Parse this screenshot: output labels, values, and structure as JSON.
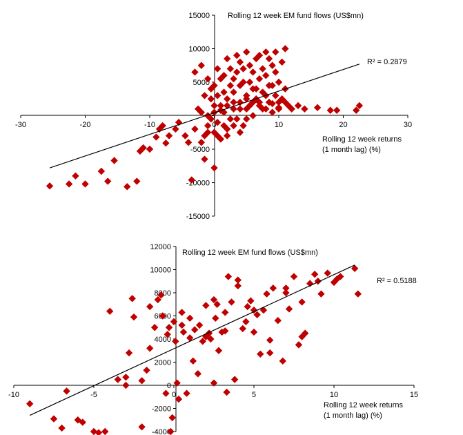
{
  "chart_data": [
    {
      "type": "scatter",
      "title": "Rolling 12 week EM fund flows (US$mn)",
      "xlabel": [
        "Rolling 12 week returns",
        "(1 month lag) (%)"
      ],
      "ylabel": "",
      "xlim": [
        -30,
        30
      ],
      "ylim": [
        -15000,
        15000
      ],
      "x_ticks": [
        -30,
        -20,
        -10,
        0,
        10,
        20,
        30
      ],
      "y_ticks": [
        15000,
        10000,
        5000,
        0,
        -5000,
        -10000,
        -15000
      ],
      "r_squared_label": "R² = 0.2879",
      "marker_color": "#c00000",
      "trendline": {
        "x": [
          -25.5,
          22.5
        ],
        "y": [
          -7800,
          7700
        ]
      },
      "series": [
        {
          "points": [
            [
              -25.5,
              -10500
            ],
            [
              -22.5,
              -10200
            ],
            [
              -21.5,
              -9000
            ],
            [
              -20,
              -10200
            ],
            [
              -17.5,
              -8300
            ],
            [
              -16.5,
              -9800
            ],
            [
              -15.5,
              -6700
            ],
            [
              -13.5,
              -10600
            ],
            [
              -12,
              -9800
            ],
            [
              -11.5,
              -5300
            ],
            [
              -11,
              -4800
            ],
            [
              -10,
              -5000
            ],
            [
              -9,
              -3200
            ],
            [
              -8.5,
              -2000
            ],
            [
              -8,
              -1500
            ],
            [
              -7.5,
              -4100
            ],
            [
              -7,
              -3000
            ],
            [
              -6,
              -2000
            ],
            [
              -5.5,
              -1000
            ],
            [
              -4.5,
              -3000
            ],
            [
              -4,
              -4000
            ],
            [
              -3.5,
              -9600
            ],
            [
              -3,
              -2000
            ],
            [
              -2.5,
              1000
            ],
            [
              -2,
              -4000
            ],
            [
              -1.5,
              -3000
            ],
            [
              -1,
              0
            ],
            [
              -1,
              -1500
            ],
            [
              -0.5,
              -500
            ],
            [
              0,
              500
            ],
            [
              0,
              -7800
            ],
            [
              0,
              -2500
            ],
            [
              -1.5,
              -6500
            ],
            [
              -3,
              6500
            ],
            [
              -2,
              7500
            ],
            [
              -1,
              5500
            ],
            [
              -0.5,
              4000
            ],
            [
              0.5,
              3000
            ],
            [
              0.5,
              -1000
            ],
            [
              1,
              1500
            ],
            [
              1,
              -3500
            ],
            [
              1.5,
              500
            ],
            [
              1.5,
              6000
            ],
            [
              2,
              2500
            ],
            [
              2,
              -2000
            ],
            [
              2.5,
              4500
            ],
            [
              2.5,
              7000
            ],
            [
              3,
              1000
            ],
            [
              3,
              3500
            ],
            [
              3.5,
              -500
            ],
            [
              3.5,
              6500
            ],
            [
              4,
              2000
            ],
            [
              4,
              8000
            ],
            [
              4.5,
              5000
            ],
            [
              4.5,
              -1500
            ],
            [
              5,
              3000
            ],
            [
              5,
              9500
            ],
            [
              5.5,
              1500
            ],
            [
              5.5,
              7500
            ],
            [
              6,
              4000
            ],
            [
              6,
              0
            ],
            [
              6.5,
              8500
            ],
            [
              6.5,
              2500
            ],
            [
              7,
              5500
            ],
            [
              7,
              9000
            ],
            [
              7.5,
              1000
            ],
            [
              7.5,
              3500
            ],
            [
              8,
              6000
            ],
            [
              8,
              9500
            ],
            [
              8.5,
              2000
            ],
            [
              8.5,
              4500
            ],
            [
              9,
              7500
            ],
            [
              9,
              500
            ],
            [
              9.5,
              3000
            ],
            [
              9.5,
              9500
            ],
            [
              10,
              5000
            ],
            [
              10,
              1000
            ],
            [
              10.5,
              8000
            ],
            [
              10.5,
              2500
            ],
            [
              11,
              10000
            ],
            [
              11,
              4000
            ],
            [
              11.5,
              1500
            ],
            [
              12,
              1000
            ],
            [
              13,
              1500
            ],
            [
              14,
              1000
            ],
            [
              16,
              1200
            ],
            [
              18,
              800
            ],
            [
              19,
              800
            ],
            [
              22,
              800
            ],
            [
              22.5,
              1500
            ],
            [
              -0.5,
              2500
            ],
            [
              0,
              4500
            ],
            [
              0.5,
              7000
            ],
            [
              1,
              5500
            ],
            [
              1.5,
              3500
            ],
            [
              2,
              8500
            ],
            [
              2.5,
              -500
            ],
            [
              3,
              5500
            ],
            [
              3.5,
              9000
            ],
            [
              4,
              4500
            ],
            [
              4.5,
              7000
            ],
            [
              5,
              1000
            ],
            [
              5.5,
              5000
            ],
            [
              6,
              6500
            ],
            [
              6.5,
              4000
            ],
            [
              7,
              2000
            ],
            [
              7.5,
              7000
            ],
            [
              8,
              3000
            ],
            [
              8.5,
              8500
            ],
            [
              9,
              4500
            ],
            [
              9.5,
              6500
            ],
            [
              10,
              2000
            ],
            [
              -2,
              500
            ],
            [
              -1.5,
              3000
            ],
            [
              0,
              1500
            ],
            [
              1,
              800
            ],
            [
              2,
              1500
            ],
            [
              3,
              2000
            ],
            [
              4,
              1000
            ],
            [
              5,
              2500
            ],
            [
              6,
              2000
            ],
            [
              7,
              1500
            ],
            [
              8,
              1000
            ],
            [
              9,
              1800
            ],
            [
              10,
              1200
            ],
            [
              11,
              2000
            ],
            [
              3,
              -1500
            ],
            [
              5,
              -500
            ],
            [
              2,
              -3000
            ],
            [
              1.5,
              -1500
            ],
            [
              0.5,
              -3000
            ],
            [
              -1,
              -2500
            ],
            [
              4,
              -2500
            ]
          ]
        }
      ]
    },
    {
      "type": "scatter",
      "title": "Rolling 12 week EM fund flows (US$mn)",
      "xlabel": [
        "Rolling 12 week returns",
        "(1 month lag) (%)"
      ],
      "ylabel": "",
      "xlim": [
        -10,
        15
      ],
      "ylim": [
        -4000,
        12000
      ],
      "x_ticks": [
        -10,
        -5,
        0,
        5,
        10,
        15
      ],
      "y_ticks": [
        12000,
        10000,
        8000,
        6000,
        4000,
        2000,
        0,
        -2000,
        -4000
      ],
      "r_squared_label": "R² = 0.5188",
      "marker_color": "#c00000",
      "trendline": {
        "x": [
          -9,
          11.3
        ],
        "y": [
          -2600,
          10400
        ]
      },
      "series": [
        {
          "points": [
            [
              -9,
              -1600
            ],
            [
              -7.5,
              -2900
            ],
            [
              -7,
              -3700
            ],
            [
              -6.7,
              -500
            ],
            [
              -6,
              -3000
            ],
            [
              -5.7,
              -3200
            ],
            [
              -5,
              -4000
            ],
            [
              -4.7,
              -4100
            ],
            [
              -4.3,
              -4000
            ],
            [
              -4,
              6400
            ],
            [
              -3.5,
              500
            ],
            [
              -3,
              700
            ],
            [
              -3,
              0
            ],
            [
              -2.8,
              2800
            ],
            [
              -2.6,
              7500
            ],
            [
              -2.5,
              5900
            ],
            [
              -2,
              -3600
            ],
            [
              -2,
              400
            ],
            [
              -1.7,
              1300
            ],
            [
              -1.5,
              3200
            ],
            [
              -1.5,
              6800
            ],
            [
              -1.2,
              5000
            ],
            [
              -1,
              7400
            ],
            [
              -0.8,
              7800
            ],
            [
              -0.7,
              6000
            ],
            [
              -0.5,
              -700
            ],
            [
              -0.3,
              5000
            ],
            [
              -0.2,
              -4000
            ],
            [
              -0.1,
              -2800
            ],
            [
              0,
              5500
            ],
            [
              0.1,
              3800
            ],
            [
              0.2,
              200
            ],
            [
              0.3,
              -1200
            ],
            [
              0.5,
              5200
            ],
            [
              0.6,
              4600
            ],
            [
              0.8,
              -700
            ],
            [
              1,
              4100
            ],
            [
              1.2,
              2100
            ],
            [
              1.3,
              4800
            ],
            [
              1.5,
              1000
            ],
            [
              1.6,
              5200
            ],
            [
              1.8,
              3800
            ],
            [
              2,
              6900
            ],
            [
              2.2,
              4500
            ],
            [
              2.3,
              4000
            ],
            [
              2.5,
              200
            ],
            [
              2.6,
              5800
            ],
            [
              2.7,
              7000
            ],
            [
              2.8,
              3000
            ],
            [
              3,
              4600
            ],
            [
              3.2,
              6300
            ],
            [
              3.3,
              -600
            ],
            [
              3.4,
              9400
            ],
            [
              3.6,
              7200
            ],
            [
              3.8,
              500
            ],
            [
              4,
              9100
            ],
            [
              4.3,
              4900
            ],
            [
              4.5,
              5500
            ],
            [
              4.6,
              6800
            ],
            [
              4.8,
              7300
            ],
            [
              5,
              4600
            ],
            [
              5.2,
              6100
            ],
            [
              5.4,
              2700
            ],
            [
              5.6,
              6500
            ],
            [
              5.8,
              7900
            ],
            [
              6,
              3900
            ],
            [
              6.2,
              8400
            ],
            [
              6.5,
              5600
            ],
            [
              6.8,
              2100
            ],
            [
              7,
              8000
            ],
            [
              7.2,
              6600
            ],
            [
              7.5,
              9400
            ],
            [
              7.8,
              3500
            ],
            [
              8,
              7200
            ],
            [
              8.2,
              4500
            ],
            [
              8.5,
              8800
            ],
            [
              8.8,
              9600
            ],
            [
              9.2,
              7900
            ],
            [
              9.6,
              9700
            ],
            [
              10,
              8900
            ],
            [
              10.4,
              9400
            ],
            [
              11.3,
              10100
            ],
            [
              11.5,
              7900
            ],
            [
              1,
              5800
            ],
            [
              0.5,
              6300
            ],
            [
              2.5,
              7400
            ],
            [
              5,
              6500
            ],
            [
              7,
              8400
            ],
            [
              4,
              8600
            ],
            [
              2,
              4200
            ],
            [
              3.2,
              4700
            ],
            [
              -0.4,
              4400
            ],
            [
              6,
              2800
            ],
            [
              8,
              4200
            ],
            [
              9,
              9000
            ],
            [
              10.2,
              9200
            ]
          ]
        }
      ]
    }
  ]
}
